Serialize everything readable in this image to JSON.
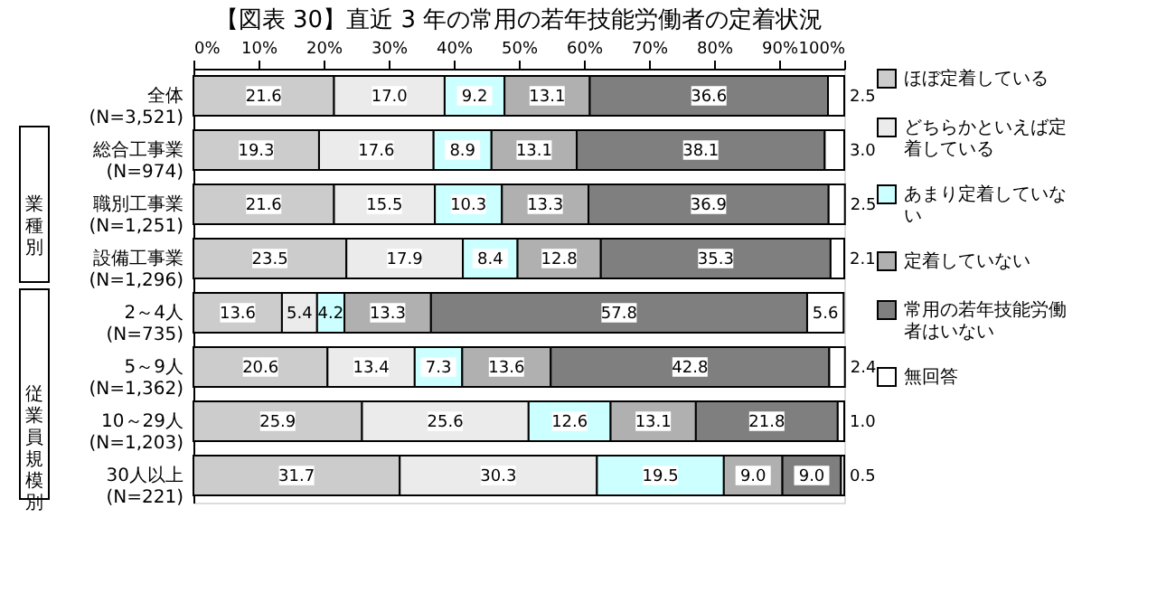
{
  "chart_data": {
    "type": "bar",
    "orientation": "horizontal",
    "stacked": true,
    "title": "【図表 30】直近 3 年の常用の若年技能労働者の定着状況",
    "categories": [
      "全体\n(N=3,521)",
      "総合工事業\n(N=974)",
      "職別工事業\n(N=1,251)",
      "設備工事業\n(N=1,296)",
      "2～4人\n(N=735)",
      "5～9人\n(N=1,362)",
      "10～29人\n(N=1,203)",
      "30人以上\n(N=221)"
    ],
    "series": [
      {
        "name": "ほぼ定着している",
        "color": "#cccccc",
        "values": [
          21.6,
          19.3,
          21.6,
          23.5,
          13.6,
          20.6,
          25.9,
          31.7
        ],
        "value_labels": [
          "21.6",
          "19.3",
          "21.6",
          "23.5",
          "13.6",
          "20.6",
          "25.9",
          "31.7"
        ]
      },
      {
        "name": "どちらかといえば定着している",
        "color": "#ebebeb",
        "values": [
          17.0,
          17.6,
          15.5,
          17.9,
          5.4,
          13.4,
          25.6,
          30.3
        ],
        "value_labels": [
          "17.0",
          "17.6",
          "15.5",
          "17.9",
          "5.4",
          "13.4",
          "25.6",
          "30.3"
        ]
      },
      {
        "name": "あまり定着していない",
        "color": "#ccffff",
        "values": [
          9.2,
          8.9,
          10.3,
          8.4,
          4.2,
          7.3,
          12.6,
          19.5
        ],
        "value_labels": [
          "9.2",
          "8.9",
          "10.3",
          "8.4",
          "4.2",
          "7.3",
          "12.6",
          "19.5"
        ]
      },
      {
        "name": "定着していない",
        "color": "#b0b0b0",
        "values": [
          13.1,
          13.1,
          13.3,
          12.8,
          13.3,
          13.6,
          13.1,
          9.0
        ],
        "value_labels": [
          "13.1",
          "13.1",
          "13.3",
          "12.8",
          "13.3",
          "13.6",
          "13.1",
          "9.0"
        ]
      },
      {
        "name": "常用の若年技能労働者はいない",
        "color": "#7f7f7f",
        "values": [
          36.6,
          38.1,
          36.9,
          35.3,
          57.8,
          42.8,
          21.8,
          9.0
        ],
        "value_labels": [
          "36.6",
          "38.1",
          "36.9",
          "35.3",
          "57.8",
          "42.8",
          "21.8",
          "9.0"
        ]
      },
      {
        "name": "無回答",
        "color": "#ffffff",
        "values": [
          2.5,
          3.0,
          2.5,
          2.1,
          5.6,
          2.4,
          1.0,
          0.5
        ],
        "value_labels": [
          "2.5",
          "3.0",
          "2.5",
          "2.1",
          "5.6",
          "2.4",
          "1.0",
          "0.5"
        ]
      }
    ],
    "xlim": [
      0,
      100
    ],
    "xticks": [
      {
        "value": 0,
        "label": "0%"
      },
      {
        "value": 10,
        "label": "10%"
      },
      {
        "value": 20,
        "label": "20%"
      },
      {
        "value": 30,
        "label": "30%"
      },
      {
        "value": 40,
        "label": "40%"
      },
      {
        "value": 50,
        "label": "50%"
      },
      {
        "value": 60,
        "label": "60%"
      },
      {
        "value": 70,
        "label": "70%"
      },
      {
        "value": 80,
        "label": "80%"
      },
      {
        "value": 90,
        "label": "90%"
      },
      {
        "value": 100,
        "label": "100%"
      }
    ],
    "annotations": [
      "業種別",
      "従業員規模別"
    ],
    "legend": "right",
    "grid": false
  }
}
